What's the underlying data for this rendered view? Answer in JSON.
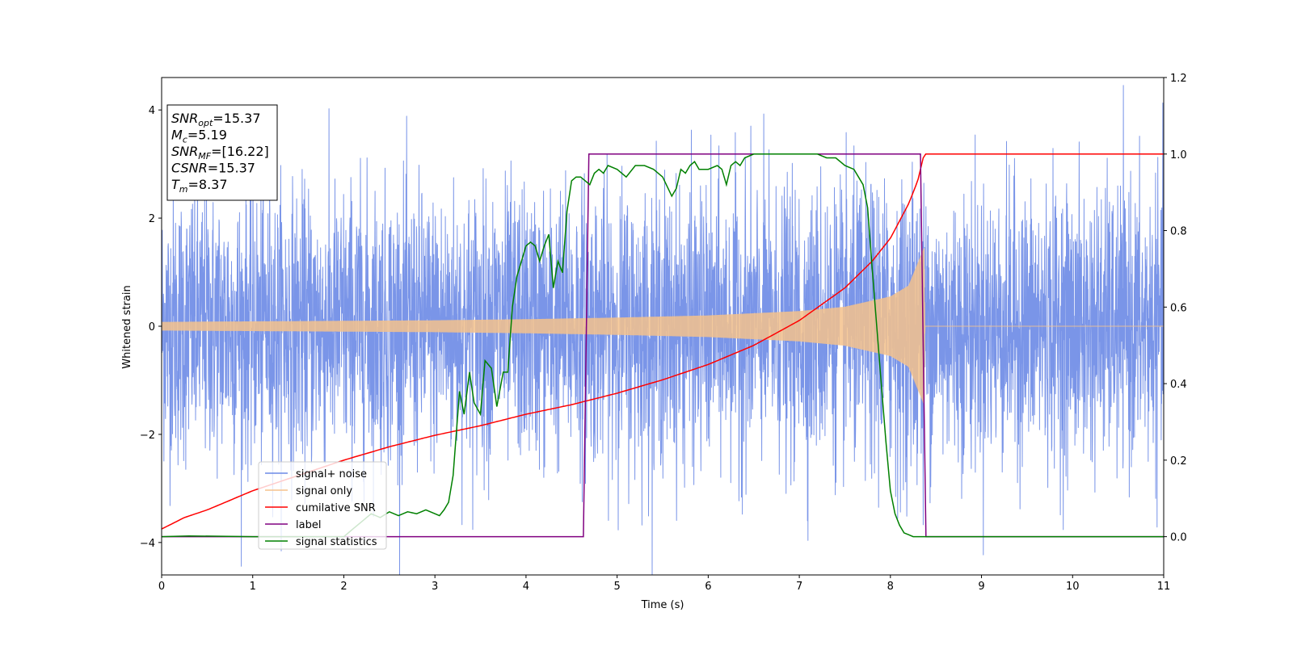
{
  "chart_data": {
    "type": "line",
    "xlabel": "Time (s)",
    "ylabel": "Whitened strain",
    "xlim": [
      0,
      11
    ],
    "ylim": [
      -4.6,
      4.6
    ],
    "y2lim": [
      -0.1,
      1.2
    ],
    "x_ticks": [
      "0",
      "1",
      "2",
      "3",
      "4",
      "5",
      "6",
      "7",
      "8",
      "9",
      "10",
      "11"
    ],
    "y_ticks": [
      "−4",
      "−2",
      "0",
      "2",
      "4"
    ],
    "y_tick_values": [
      -4,
      -2,
      0,
      2,
      4
    ],
    "y2_ticks": [
      "0.0",
      "0.2",
      "0.4",
      "0.6",
      "0.8",
      "1.0",
      "1.2"
    ],
    "y2_tick_values": [
      0.0,
      0.2,
      0.4,
      0.6,
      0.8,
      1.0,
      1.2
    ],
    "grid": false,
    "legend_position": "bottom-left",
    "colors": {
      "noise": "#6b8ae6",
      "signal": "#f5c28c",
      "csnr": "#ff0000",
      "label": "#800080",
      "stats": "#008000"
    },
    "info_box": [
      {
        "name": "SNR",
        "sub": "opt",
        "value": "=15.37"
      },
      {
        "name": "M",
        "sub": "c",
        "value": "=5.19"
      },
      {
        "name": "SNR",
        "sub": "MF",
        "value": "=[16.22]"
      },
      {
        "name": "CSNR",
        "sub": "",
        "value": "=15.37"
      },
      {
        "name": "T",
        "sub": "m",
        "value": "=8.37"
      }
    ],
    "legend": [
      {
        "label": "signal+ noise",
        "color": "#6b8ae6"
      },
      {
        "label": "signal only",
        "color": "#f5c28c"
      },
      {
        "label": "cumilative SNR",
        "color": "#ff0000"
      },
      {
        "label": "label",
        "color": "#800080"
      },
      {
        "label": "signal statistics",
        "color": "#008000"
      }
    ],
    "series": [
      {
        "name": "signal+ noise",
        "axis": "left",
        "description_range": [
          -4.2,
          4.2
        ],
        "amplitude_envelope": {
          "x": [
            0,
            11
          ],
          "y": [
            1.3,
            1.3
          ]
        }
      },
      {
        "name": "signal only",
        "axis": "left",
        "envelope_x": [
          0,
          1,
          2,
          3,
          4,
          5,
          6,
          7,
          7.5,
          8,
          8.2,
          8.37,
          8.38,
          11
        ],
        "envelope_y": [
          0.08,
          0.09,
          0.1,
          0.11,
          0.13,
          0.16,
          0.2,
          0.28,
          0.36,
          0.55,
          0.75,
          1.45,
          0,
          0
        ]
      },
      {
        "name": "cumilative SNR",
        "axis": "right",
        "x": [
          0,
          0.25,
          0.5,
          1,
          1.5,
          2,
          2.5,
          3,
          3.5,
          4,
          4.5,
          5,
          5.5,
          6,
          6.5,
          7,
          7.5,
          7.8,
          8,
          8.2,
          8.3,
          8.37,
          11
        ],
        "y": [
          0.02,
          0.05,
          0.07,
          0.12,
          0.16,
          0.2,
          0.235,
          0.265,
          0.29,
          0.32,
          0.345,
          0.375,
          0.41,
          0.45,
          0.5,
          0.565,
          0.65,
          0.72,
          0.78,
          0.87,
          0.93,
          1.0,
          1.0
        ]
      },
      {
        "name": "label",
        "axis": "right",
        "x": [
          0,
          4.63,
          4.69,
          8.33,
          8.39,
          11
        ],
        "y": [
          0.0,
          0.0,
          1.0,
          1.0,
          0.0,
          0.0
        ]
      },
      {
        "name": "signal statistics",
        "axis": "right",
        "x": [
          0,
          0.3,
          1,
          2,
          2.1,
          2.2,
          2.3,
          2.4,
          2.5,
          2.6,
          2.7,
          2.8,
          2.9,
          3.0,
          3.05,
          3.1,
          3.15,
          3.2,
          3.27,
          3.32,
          3.38,
          3.43,
          3.5,
          3.55,
          3.62,
          3.68,
          3.75,
          3.8,
          3.85,
          3.9,
          3.95,
          4.0,
          4.05,
          4.1,
          4.15,
          4.2,
          4.25,
          4.3,
          4.35,
          4.4,
          4.45,
          4.5,
          4.55,
          4.6,
          4.65,
          4.7,
          4.75,
          4.8,
          4.85,
          4.9,
          5.0,
          5.1,
          5.2,
          5.3,
          5.4,
          5.5,
          5.6,
          5.65,
          5.7,
          5.75,
          5.8,
          5.85,
          5.9,
          6.0,
          6.1,
          6.15,
          6.2,
          6.25,
          6.3,
          6.35,
          6.4,
          6.5,
          6.6,
          6.7,
          7.0,
          7.2,
          7.3,
          7.4,
          7.5,
          7.6,
          7.7,
          7.75,
          7.8,
          7.85,
          7.9,
          7.95,
          8.0,
          8.05,
          8.1,
          8.15,
          8.2,
          8.25,
          8.3,
          8.37,
          11
        ],
        "y": [
          0.0,
          0.002,
          0.0,
          0.0,
          0.02,
          0.04,
          0.06,
          0.05,
          0.065,
          0.055,
          0.065,
          0.06,
          0.07,
          0.06,
          0.055,
          0.07,
          0.09,
          0.16,
          0.38,
          0.32,
          0.43,
          0.35,
          0.32,
          0.46,
          0.44,
          0.34,
          0.43,
          0.43,
          0.6,
          0.68,
          0.72,
          0.76,
          0.77,
          0.76,
          0.72,
          0.76,
          0.79,
          0.65,
          0.72,
          0.69,
          0.85,
          0.93,
          0.94,
          0.94,
          0.93,
          0.92,
          0.95,
          0.96,
          0.95,
          0.97,
          0.96,
          0.94,
          0.97,
          0.97,
          0.96,
          0.94,
          0.89,
          0.91,
          0.96,
          0.95,
          0.97,
          0.98,
          0.96,
          0.96,
          0.97,
          0.96,
          0.92,
          0.97,
          0.98,
          0.97,
          0.99,
          1.0,
          1.0,
          1.0,
          1.0,
          1.0,
          0.99,
          0.99,
          0.97,
          0.96,
          0.92,
          0.86,
          0.7,
          0.55,
          0.4,
          0.25,
          0.12,
          0.06,
          0.03,
          0.01,
          0.005,
          0.0,
          0.0,
          0.0,
          0.0
        ]
      }
    ]
  }
}
